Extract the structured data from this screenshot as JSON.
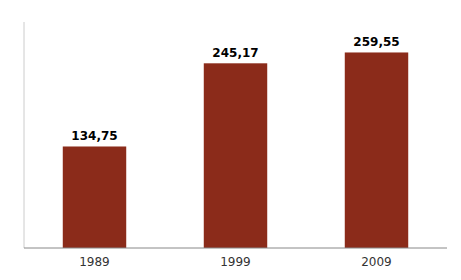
{
  "chart_data": {
    "type": "bar",
    "categories": [
      "1989",
      "1999",
      "2009"
    ],
    "values": [
      134.75,
      245.17,
      259.55
    ],
    "value_labels": [
      "134,75",
      "245,17",
      "259,55"
    ],
    "data_labels": true,
    "color": "#8B2B1A",
    "ylim": [
      0,
      300
    ],
    "tick_labels": "x",
    "grid": false
  }
}
